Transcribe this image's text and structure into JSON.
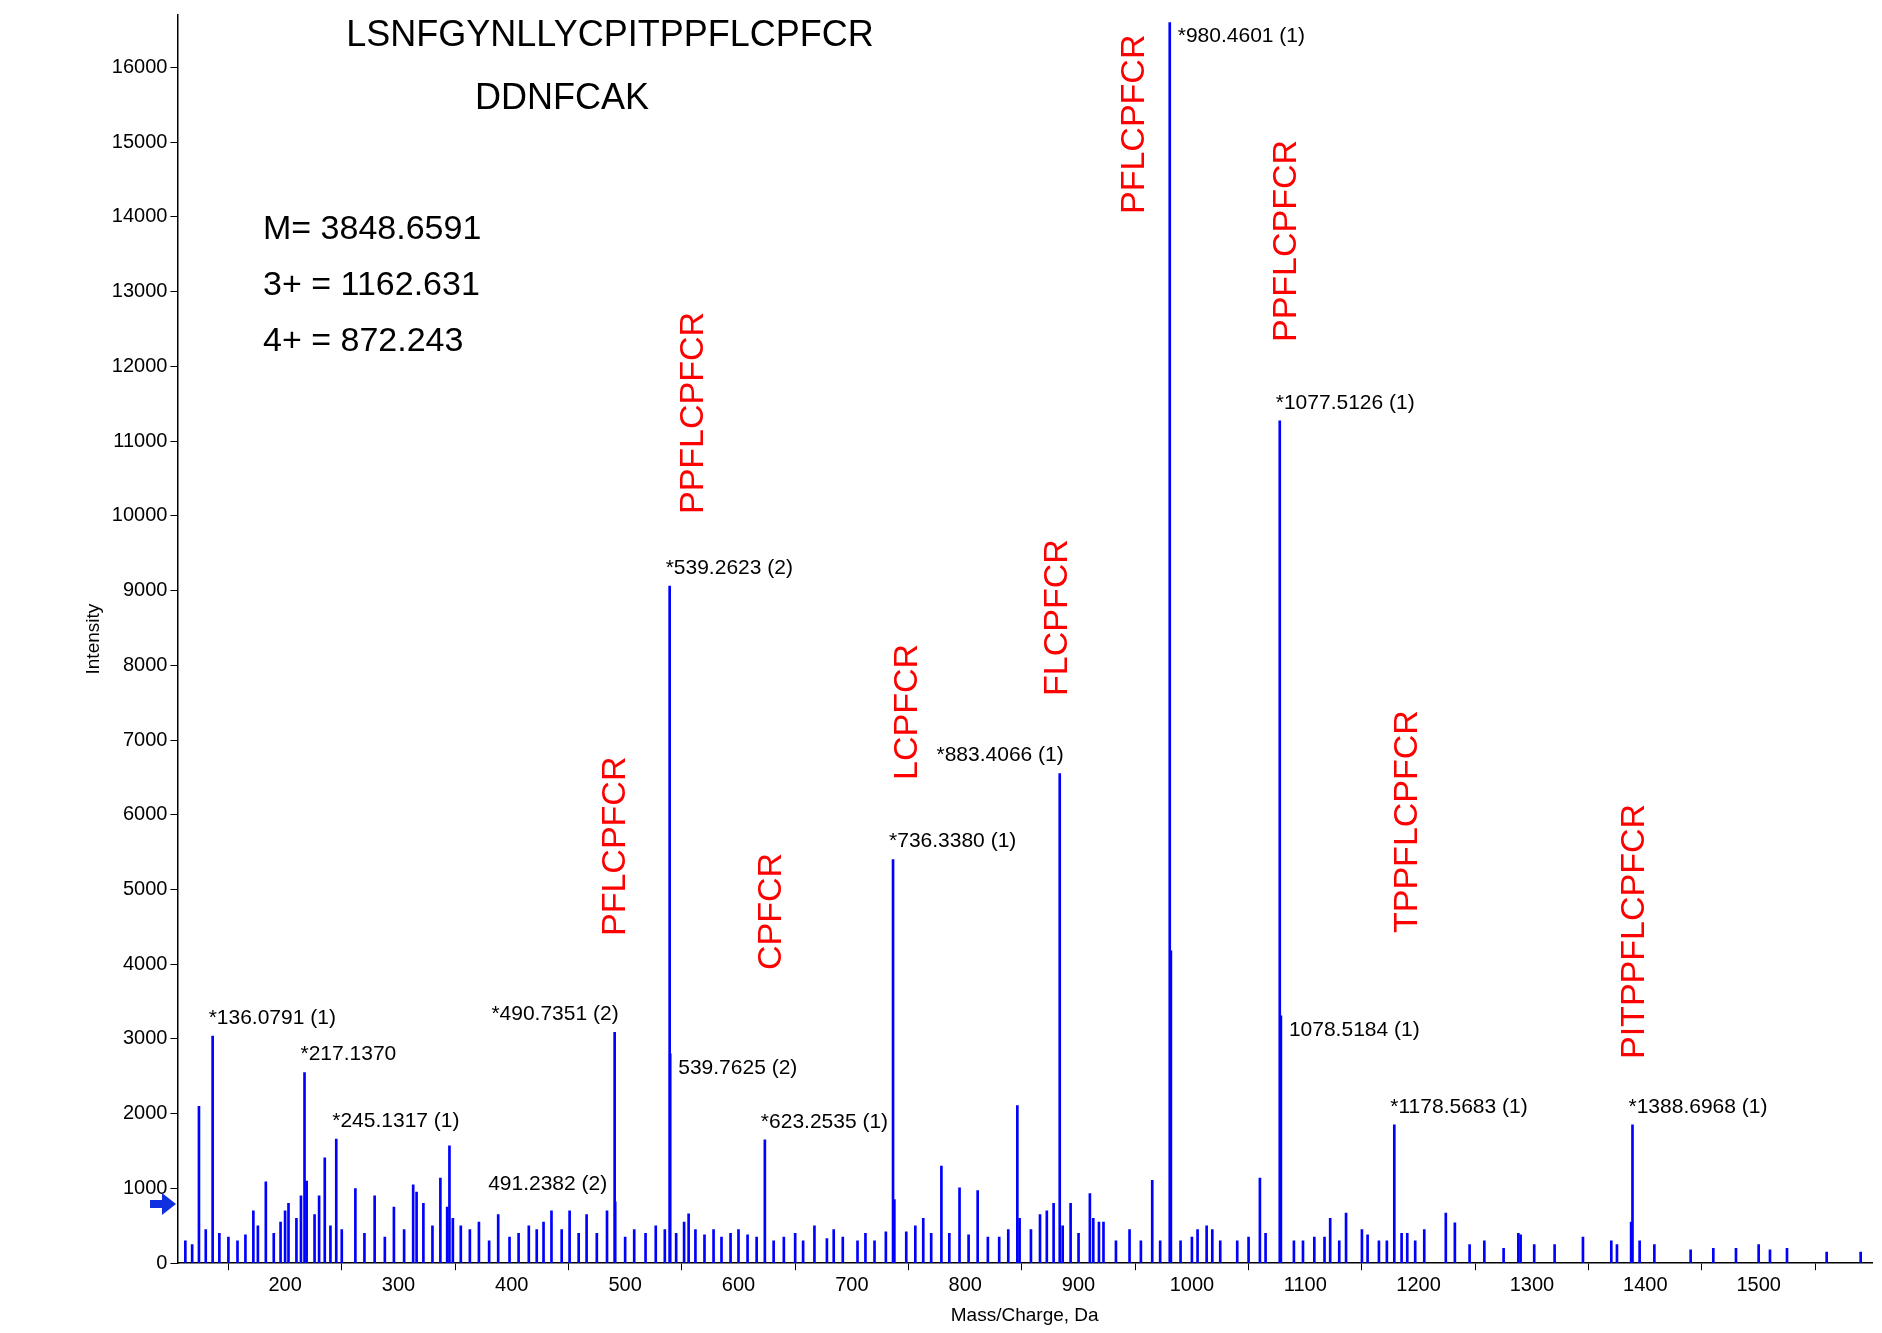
{
  "chart_data": {
    "type": "bar",
    "xlabel": "Mass/Charge, Da",
    "ylabel": "Intensity",
    "xlim": [
      105,
      1600
    ],
    "xticks": [
      200,
      300,
      400,
      500,
      600,
      700,
      800,
      900,
      1000,
      1100,
      1200,
      1300,
      1400,
      1500
    ],
    "ylim": [
      0,
      16700
    ],
    "yticks": [
      0,
      1000,
      2000,
      3000,
      4000,
      5000,
      6000,
      7000,
      8000,
      9000,
      10000,
      11000,
      12000,
      13000,
      14000,
      15000,
      16000
    ],
    "grid": false,
    "legend": false,
    "series": [
      {
        "color": "#0000ff",
        "x": [
          112,
          118,
          124,
          130,
          142,
          150,
          158,
          165,
          172,
          176,
          183,
          190,
          196,
          200,
          203,
          210,
          214,
          219,
          226,
          230,
          235,
          240,
          250,
          262,
          270,
          279,
          288,
          296,
          305,
          313,
          316,
          322,
          330,
          337,
          343,
          345,
          348,
          355,
          363,
          371,
          380,
          388,
          398,
          406,
          415,
          422,
          428,
          435,
          444,
          451,
          459,
          466,
          475,
          484,
          500,
          508,
          518,
          527,
          535,
          545,
          552,
          556,
          562,
          570,
          578,
          585,
          593,
          600,
          608,
          616,
          631,
          640,
          650,
          657,
          667,
          678,
          684,
          692,
          705,
          712,
          720,
          730,
          737.5,
          748,
          756,
          763,
          770,
          779,
          786,
          795,
          803,
          811,
          820,
          830,
          838,
          846,
          848,
          858,
          866,
          872,
          878,
          886,
          893,
          900,
          910,
          913,
          918,
          922,
          933,
          945,
          955,
          965,
          972,
          981.47,
          990,
          1000,
          1005,
          1013,
          1018,
          1025,
          1040,
          1050,
          1060,
          1065,
          1090,
          1098,
          1108,
          1117,
          1122,
          1130,
          1136,
          1150,
          1155,
          1165,
          1172,
          1185,
          1190,
          1197,
          1205,
          1224,
          1232,
          1245,
          1258,
          1275,
          1288,
          1290,
          1302,
          1320,
          1345,
          1370,
          1375,
          1387.5,
          1395,
          1408,
          1440,
          1460,
          1480,
          1500,
          1510,
          1525,
          1560,
          1590
        ],
        "values": [
          300,
          250,
          2100,
          450,
          400,
          350,
          300,
          380,
          700,
          500,
          1090,
          400,
          550,
          700,
          800,
          600,
          900,
          1100,
          650,
          900,
          1410,
          500,
          450,
          1000,
          400,
          900,
          350,
          750,
          450,
          1050,
          950,
          800,
          500,
          1140,
          750,
          1570,
          600,
          500,
          450,
          550,
          300,
          650,
          350,
          400,
          500,
          450,
          550,
          700,
          450,
          700,
          400,
          650,
          400,
          700,
          350,
          450,
          400,
          500,
          450,
          400,
          550,
          660,
          450,
          380,
          450,
          350,
          400,
          450,
          380,
          350,
          300,
          350,
          400,
          300,
          500,
          330,
          450,
          350,
          300,
          400,
          300,
          420,
          850,
          420,
          500,
          600,
          400,
          1300,
          400,
          1010,
          380,
          970,
          350,
          350,
          450,
          2110,
          600,
          450,
          650,
          700,
          800,
          500,
          800,
          400,
          930,
          600,
          550,
          550,
          300,
          450,
          300,
          1110,
          300,
          4180,
          300,
          350,
          450,
          500,
          450,
          300,
          300,
          350,
          1140,
          400,
          300,
          300,
          350,
          350,
          600,
          300,
          670,
          450,
          380,
          300,
          300,
          400,
          400,
          300,
          450,
          670,
          540,
          250,
          300,
          200,
          400,
          380,
          250,
          250,
          350,
          300,
          250,
          550,
          300,
          250,
          180,
          200,
          200,
          250,
          180,
          200,
          150,
          150
        ]
      },
      {
        "color": "#0000ff",
        "x": [
          136.0791,
          217.137,
          245.1317,
          490.7351,
          491.2382,
          539.2623,
          539.7625,
          623.2535,
          736.338,
          883.4066,
          980.4601,
          1077.5126,
          1078.5184,
          1178.5683,
          1388.6968
        ],
        "values": [
          3040,
          2550,
          1660,
          3090,
          820,
          9060,
          2800,
          1650,
          5400,
          6550,
          16600,
          11270,
          3310,
          1850,
          1850
        ]
      }
    ],
    "annotations": [
      "LSNFGYNLLYCPITPPFLCPFCR",
      "DDNFCAK",
      "M= 3848.6591",
      "3+ = 1162.631",
      "4+ = 872.243",
      "PFLCPFCR",
      "PPFLCPFCR",
      "CPFCR",
      "LCPFCR",
      "FLCPFCR",
      "PFLCPFCR",
      "PPFLCPFCR",
      "TPPFLCPFCR",
      "PITPPFLCPFCR",
      {
        "text": "*136.0791 (1)",
        "x": 136.0791,
        "y": 3040
      },
      {
        "text": "*217.1370",
        "x": 217.137,
        "y": 2550
      },
      {
        "text": "*245.1317 (1)",
        "x": 245.1317,
        "y": 1660
      },
      {
        "text": "*490.7351 (2)",
        "x": 490.7351,
        "y": 3090
      },
      {
        "text": "491.2382 (2)",
        "x": 491.2382,
        "y": 820
      },
      {
        "text": "*539.2623 (2)",
        "x": 539.2623,
        "y": 9060
      },
      {
        "text": "539.7625 (2)",
        "x": 539.7625,
        "y": 2800
      },
      {
        "text": "*623.2535 (1)",
        "x": 623.2535,
        "y": 1650
      },
      {
        "text": "*736.3380 (1)",
        "x": 736.338,
        "y": 5400
      },
      {
        "text": "*883.4066 (1)",
        "x": 883.4066,
        "y": 6550
      },
      {
        "text": "*980.4601 (1)",
        "x": 980.4601,
        "y": 16600
      },
      {
        "text": "*1077.5126 (1)",
        "x": 1077.5126,
        "y": 11270
      },
      {
        "text": "1078.5184 (1)",
        "x": 1078.5184,
        "y": 3310
      },
      {
        "text": "*1178.5683 (1)",
        "x": 1178.5683,
        "y": 1850
      },
      {
        "text": "*1388.6968 (1)",
        "x": 1388.6968,
        "y": 1850
      }
    ]
  }
}
